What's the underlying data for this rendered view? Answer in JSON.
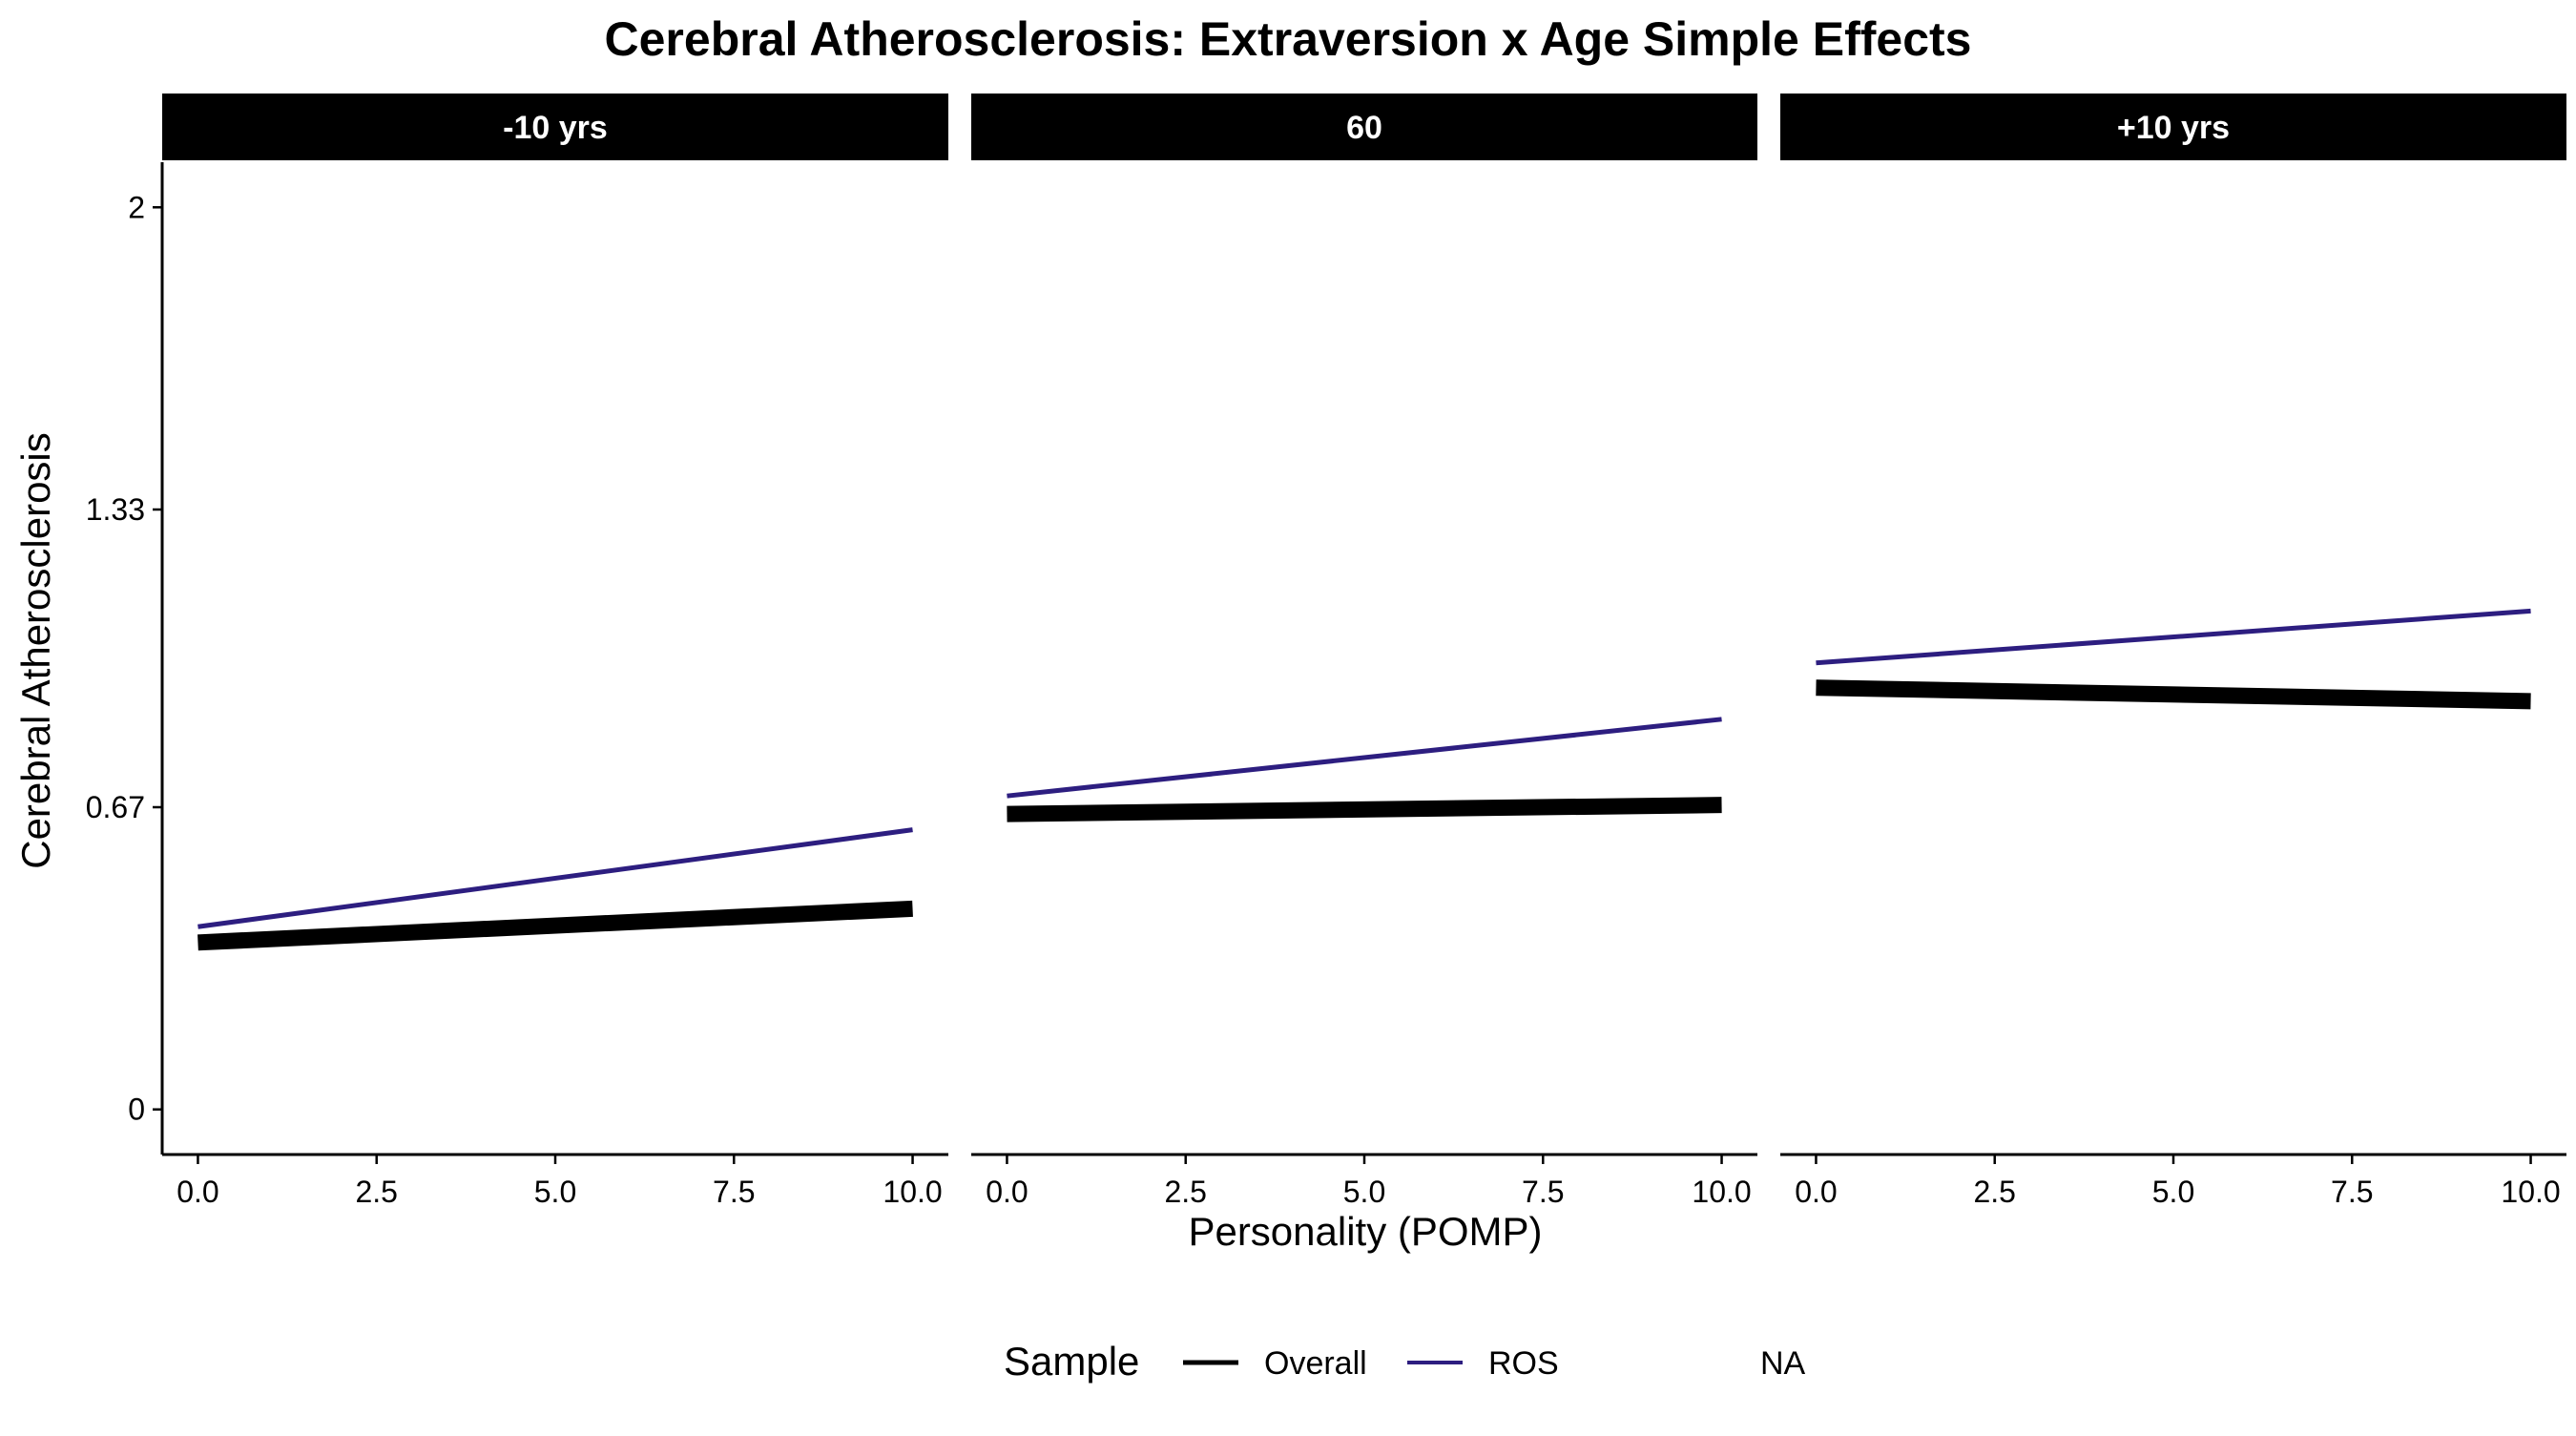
{
  "chart_data": {
    "type": "line",
    "title": "Cerebral Atherosclerosis: Extraversion x Age Simple Effects",
    "xlabel": "Personality (POMP)",
    "ylabel": "Cerebral Atherosclerosis",
    "xlim": [
      -0.5,
      10.5
    ],
    "ylim": [
      -0.1,
      2.1
    ],
    "x_ticks": [
      0.0,
      2.5,
      5.0,
      7.5,
      10.0
    ],
    "x_tick_labels": [
      "0.0",
      "2.5",
      "5.0",
      "7.5",
      "10.0"
    ],
    "y_ticks": [
      0,
      0.67,
      1.33,
      2
    ],
    "y_tick_labels": [
      "0",
      "0.67",
      "1.33",
      "2"
    ],
    "grid": false,
    "legend": {
      "title": "Sample",
      "position": "bottom",
      "entries": [
        {
          "label": "Overall",
          "color": "#000000"
        },
        {
          "label": "ROS",
          "color": "#2d1e80"
        },
        {
          "label": "NA",
          "color": null
        }
      ]
    },
    "panels": [
      {
        "label": "-10 yrs",
        "series": [
          {
            "name": "Overall",
            "color": "#000000",
            "x": [
              0,
              10
            ],
            "y": [
              0.37,
              0.445
            ]
          },
          {
            "name": "ROS",
            "color": "#2d1e80",
            "x": [
              0,
              10
            ],
            "y": [
              0.405,
              0.62
            ]
          }
        ]
      },
      {
        "label": "60",
        "series": [
          {
            "name": "Overall",
            "color": "#000000",
            "x": [
              0,
              10
            ],
            "y": [
              0.655,
              0.675
            ]
          },
          {
            "name": "ROS",
            "color": "#2d1e80",
            "x": [
              0,
              10
            ],
            "y": [
              0.695,
              0.865
            ]
          }
        ]
      },
      {
        "label": "+10 yrs",
        "series": [
          {
            "name": "Overall",
            "color": "#000000",
            "x": [
              0,
              10
            ],
            "y": [
              0.935,
              0.905
            ]
          },
          {
            "name": "ROS",
            "color": "#2d1e80",
            "x": [
              0,
              10
            ],
            "y": [
              0.99,
              1.105
            ]
          }
        ]
      }
    ]
  }
}
